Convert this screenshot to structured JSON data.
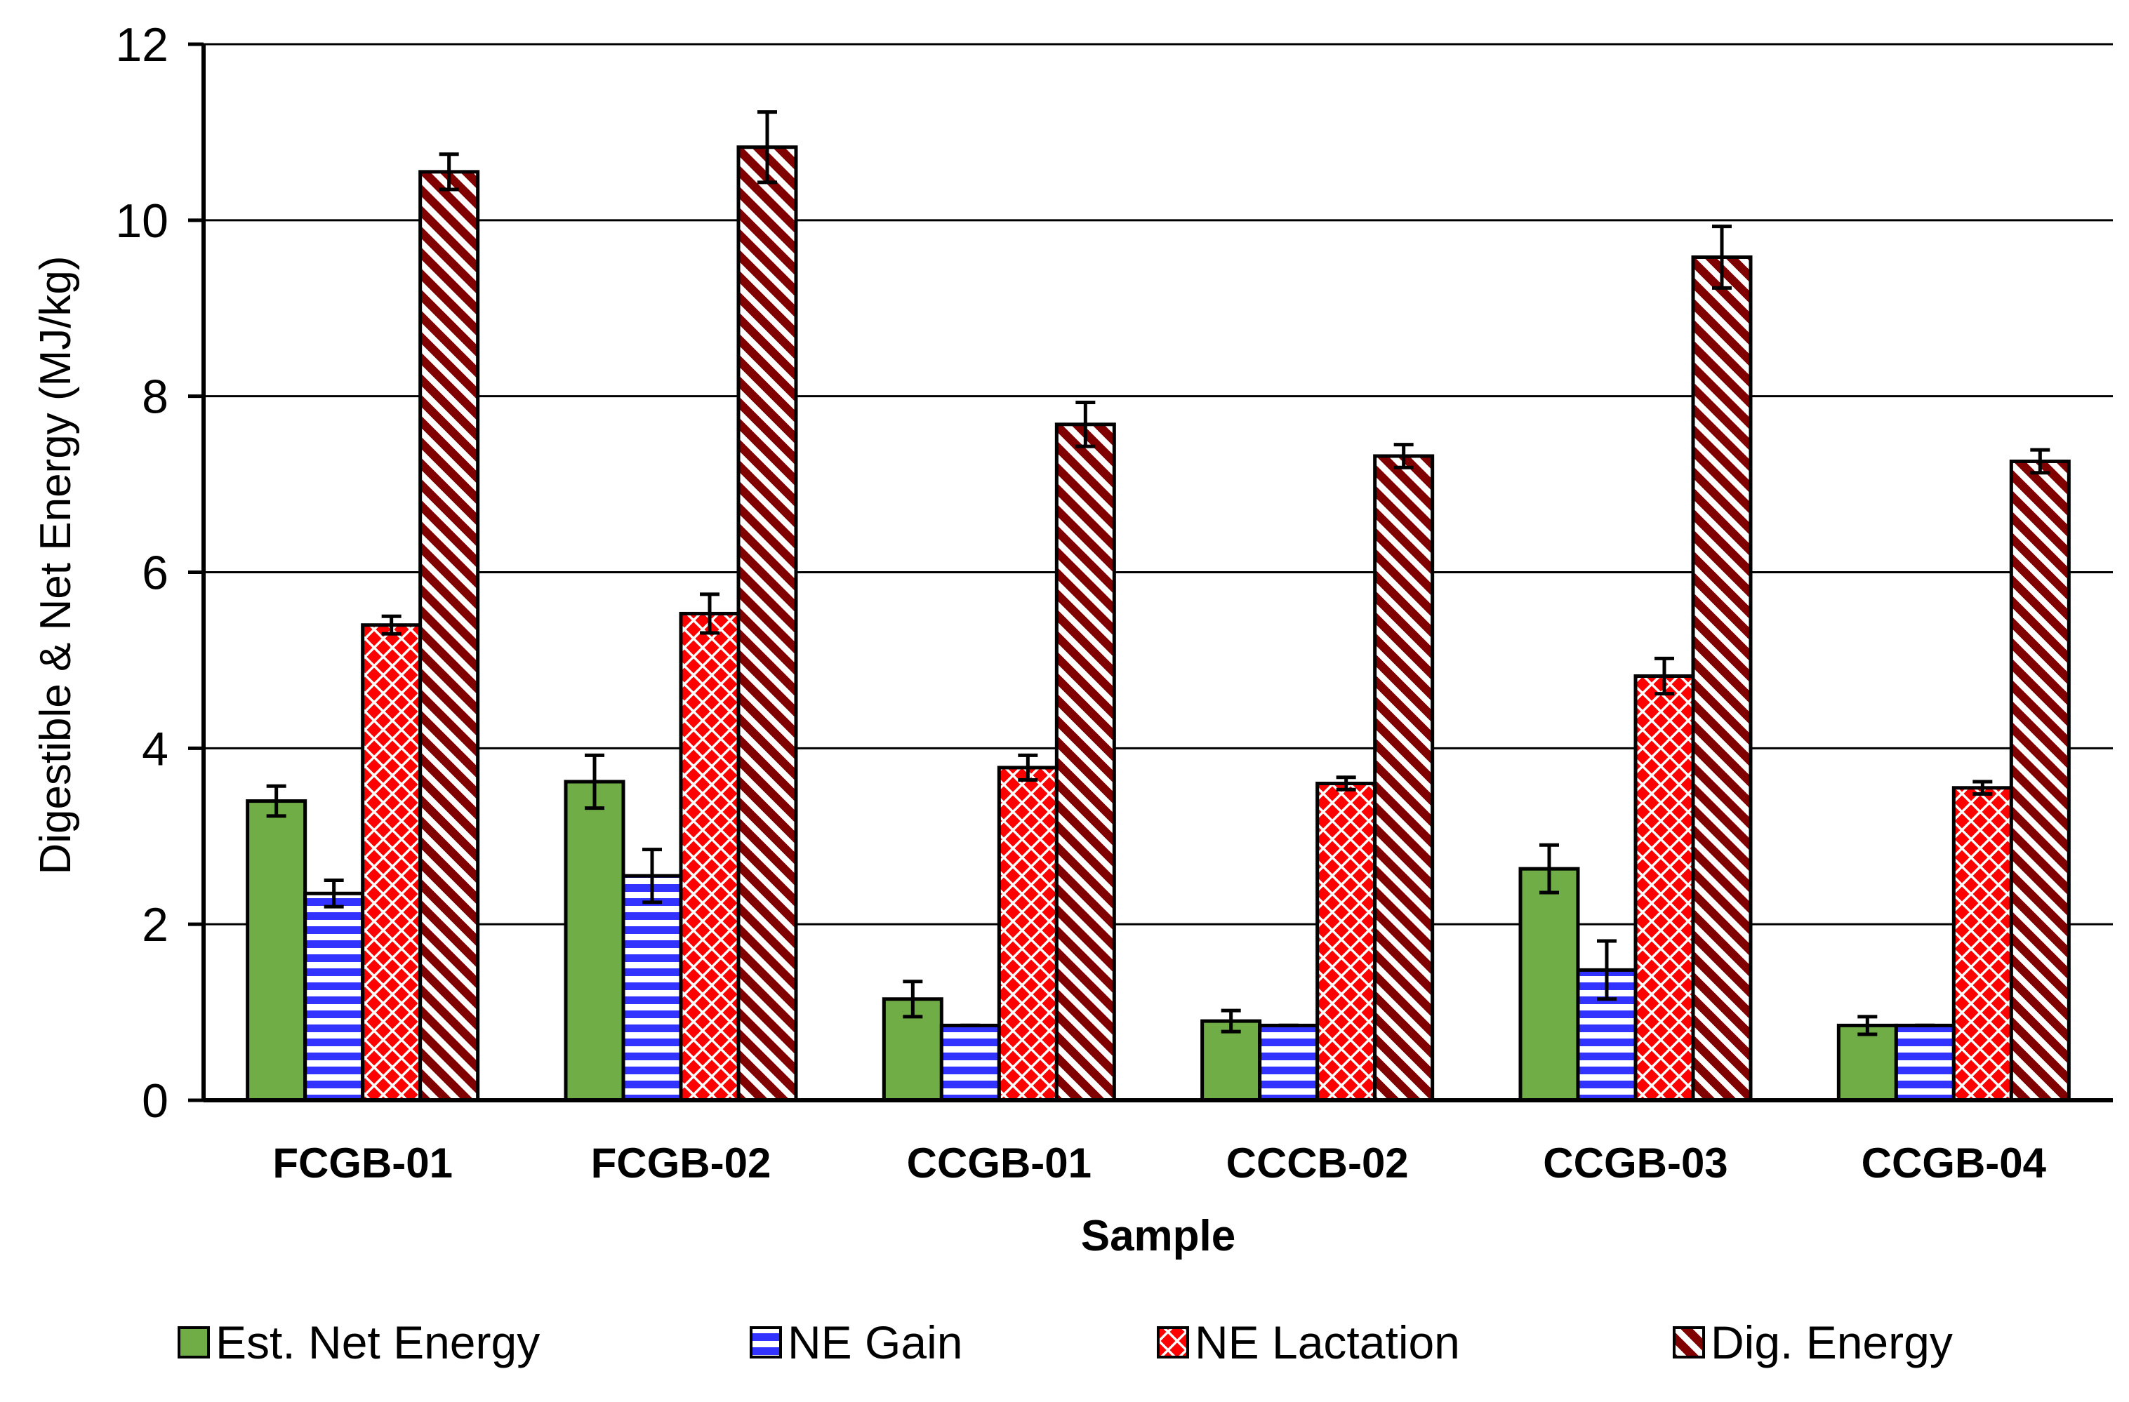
{
  "chart_data": {
    "type": "bar",
    "title": "",
    "xlabel": "Sample",
    "ylabel": "Digestible & Net Energy (MJ/kg)",
    "ylim": [
      0,
      12
    ],
    "yticks": [
      "0",
      "2",
      "4",
      "6",
      "8",
      "10",
      "12"
    ],
    "grid": "horizontal",
    "legend_position": "bottom",
    "categories": [
      "FCGB-01",
      "FCGB-02",
      "CCGB-01",
      "CCCB-02",
      "CCGB-03",
      "CCGB-04"
    ],
    "series": [
      {
        "name": "Est. Net Energy",
        "pattern": "solid",
        "color": "#70AD47",
        "values": [
          3.4,
          3.62,
          1.15,
          0.9,
          2.63,
          0.85
        ],
        "errors": [
          0.17,
          0.3,
          0.2,
          0.12,
          0.27,
          0.1
        ]
      },
      {
        "name": "NE Gain",
        "pattern": "horizontal-stripes",
        "color": "#3333FF",
        "values": [
          2.35,
          2.55,
          0.85,
          0.85,
          1.48,
          0.85
        ],
        "errors": [
          0.15,
          0.3,
          0.0,
          0.0,
          0.33,
          0.0
        ]
      },
      {
        "name": "NE Lactation",
        "pattern": "diamond-grid",
        "color": "#FF0000",
        "values": [
          5.4,
          5.53,
          3.78,
          3.6,
          4.82,
          3.55
        ],
        "errors": [
          0.1,
          0.22,
          0.14,
          0.07,
          0.2,
          0.07
        ]
      },
      {
        "name": "Dig. Energy",
        "pattern": "diagonal-stripes",
        "color": "#800000",
        "values": [
          10.55,
          10.83,
          7.68,
          7.32,
          9.58,
          7.26
        ],
        "errors": [
          0.2,
          0.4,
          0.25,
          0.13,
          0.35,
          0.13
        ]
      }
    ]
  }
}
